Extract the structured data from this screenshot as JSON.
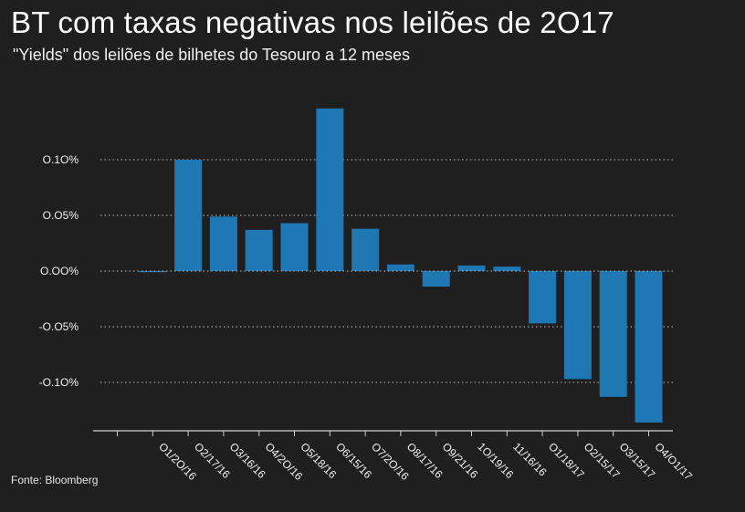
{
  "title": "BT com taxas negativas nos leilões de 2O17",
  "subtitle": "\"Yields\" dos leilões de bilhetes do Tesouro a 12 meses",
  "source": "Fonte: Bloomberg",
  "colors": {
    "background": "#1f1f1f",
    "bar": "#1f77b4",
    "grid": "#bdbdbd",
    "axis": "#d0d0d0",
    "text": "#ffffff"
  },
  "chart_data": {
    "type": "bar",
    "categories": [
      "",
      "O1/2O/16",
      "O2/17/16",
      "O3/16/16",
      "O4/2O/16",
      "O5/18/16",
      "O6/15/16",
      "O7/2O/16",
      "O8/17/16",
      "O9/21/16",
      "1O/19/16",
      "11/16/16",
      "O1/18/17",
      "O2/15/17",
      "O3/15/17",
      "O4/O1/17"
    ],
    "values": [
      0.0,
      -0.001,
      0.1,
      0.049,
      0.037,
      0.043,
      0.146,
      0.038,
      0.006,
      -0.014,
      0.005,
      0.004,
      -0.047,
      -0.097,
      -0.113,
      -0.136
    ],
    "yticks": [
      0.1,
      0.05,
      0.0,
      -0.05,
      -0.1
    ],
    "ytick_labels": [
      "O.1O%",
      "O.O5%",
      "O.OO%",
      "-O.O5%",
      "-O.1O%"
    ],
    "ylim": [
      -0.14,
      0.15
    ],
    "xlabel": "",
    "ylabel": "",
    "grid": "horizontal-dotted",
    "legend": "none"
  }
}
